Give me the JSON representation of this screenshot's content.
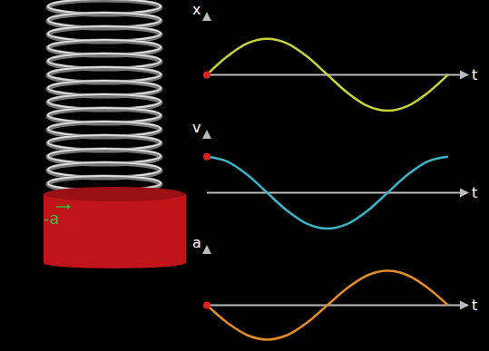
{
  "annotation": "-a",
  "chart_data": [
    {
      "type": "line",
      "y_label": "x",
      "x_label": "t",
      "color": "#c8d23c",
      "tick_labels": false,
      "x": [
        0,
        0.083,
        0.167,
        0.25,
        0.333,
        0.417,
        0.5,
        0.583,
        0.667,
        0.75,
        0.833,
        0.917,
        1
      ],
      "values": [
        0,
        0.5,
        0.87,
        1,
        0.87,
        0.5,
        0,
        -0.5,
        -0.87,
        -1,
        -0.87,
        -0.5,
        0
      ],
      "xlim": [
        0,
        1.08
      ],
      "ylim": [
        -1.2,
        1.7
      ]
    },
    {
      "type": "line",
      "y_label": "v",
      "x_label": "t",
      "color": "#3cb4c8",
      "tick_labels": false,
      "x": [
        0,
        0.083,
        0.167,
        0.25,
        0.333,
        0.417,
        0.5,
        0.583,
        0.667,
        0.75,
        0.833,
        0.917,
        1
      ],
      "values": [
        1,
        0.87,
        0.5,
        0,
        -0.5,
        -0.87,
        -1,
        -0.87,
        -0.5,
        0,
        0.5,
        0.87,
        1
      ],
      "xlim": [
        0,
        1.08
      ],
      "ylim": [
        -1.2,
        1.7
      ]
    },
    {
      "type": "line",
      "y_label": "a",
      "x_label": "t",
      "color": "#e08c28",
      "tick_labels": false,
      "x": [
        0,
        0.083,
        0.167,
        0.25,
        0.333,
        0.417,
        0.5,
        0.583,
        0.667,
        0.75,
        0.833,
        0.917,
        1
      ],
      "values": [
        0,
        -0.5,
        -0.87,
        -1,
        -0.87,
        -0.5,
        0,
        0.5,
        0.87,
        1,
        0.87,
        0.5,
        0
      ],
      "xlim": [
        0,
        1.08
      ],
      "ylim": [
        -1.2,
        1.7
      ]
    }
  ]
}
